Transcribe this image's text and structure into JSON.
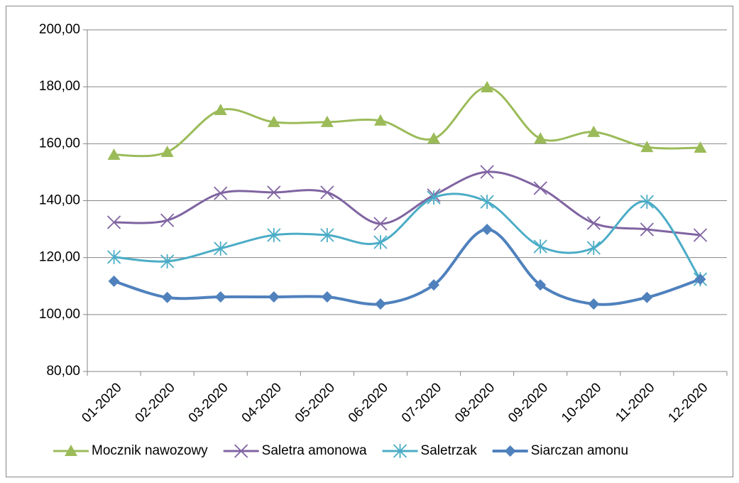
{
  "chart_data": {
    "type": "line",
    "smooth": true,
    "grid": true,
    "legend": "bottom",
    "categories": [
      "01-2020",
      "02-2020",
      "03-2020",
      "04-2020",
      "05-2020",
      "06-2020",
      "07-2020",
      "08-2020",
      "09-2020",
      "10-2020",
      "11-2020",
      "12-2020"
    ],
    "ylim": [
      80,
      200
    ],
    "yticks": [
      {
        "value": 80,
        "label": "80,00"
      },
      {
        "value": 100,
        "label": "100,00"
      },
      {
        "value": 120,
        "label": "120,00"
      },
      {
        "value": 140,
        "label": "140,00"
      },
      {
        "value": 160,
        "label": "160,00"
      },
      {
        "value": 180,
        "label": "180,00"
      },
      {
        "value": 200,
        "label": "200,00"
      }
    ],
    "series": [
      {
        "name": "Mocznik nawozowy",
        "color": "#9bbb59",
        "marker": "triangle",
        "values": [
          156.1,
          157.1,
          171.8,
          167.6,
          167.6,
          168.1,
          161.8,
          179.8,
          161.8,
          164.1,
          158.8,
          158.6
        ]
      },
      {
        "name": "Saletra amonowa",
        "color": "#8064a2",
        "marker": "x",
        "values": [
          132.4,
          133.1,
          142.6,
          142.9,
          142.9,
          131.9,
          141.9,
          150.1,
          144.4,
          132.1,
          129.9,
          127.9
        ]
      },
      {
        "name": "Saletrzak",
        "color": "#4bacc6",
        "marker": "star",
        "values": [
          120.2,
          118.7,
          123.2,
          127.9,
          127.9,
          125.4,
          141.1,
          139.6,
          123.9,
          123.4,
          139.6,
          112.4
        ]
      },
      {
        "name": "Siarczan amonu",
        "color": "#4f81bd",
        "marker": "diamond",
        "width": 4,
        "values": [
          111.7,
          106.0,
          106.2,
          106.2,
          106.2,
          103.7,
          110.4,
          129.9,
          110.4,
          103.7,
          106.0,
          112.4
        ]
      }
    ]
  }
}
